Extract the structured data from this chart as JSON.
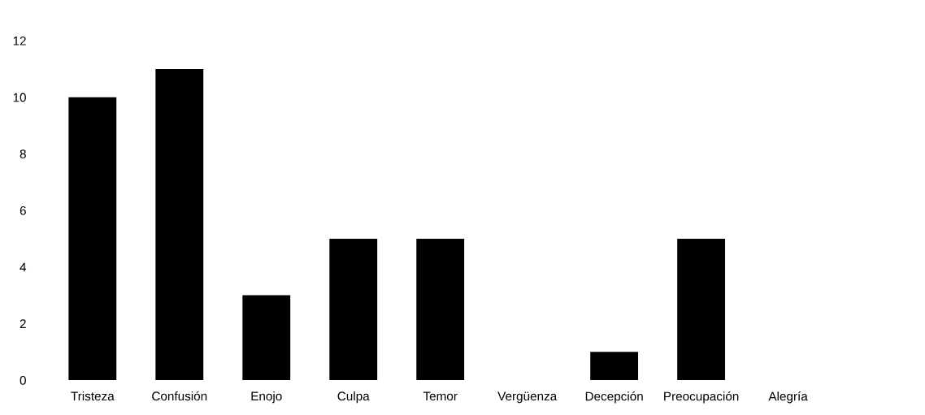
{
  "chart_data": {
    "type": "bar",
    "categories": [
      "Tristeza",
      "Confusión",
      "Enojo",
      "Culpa",
      "Temor",
      "Vergüenza",
      "Decepción",
      "Preocupación",
      "Alegría"
    ],
    "values": [
      10,
      11,
      3,
      5,
      5,
      0,
      1,
      5,
      0
    ],
    "color": "#000000",
    "ylim": [
      0,
      12
    ],
    "yticks": [
      0,
      2,
      4,
      6,
      8,
      10,
      12
    ],
    "grid": false,
    "legend": false
  }
}
